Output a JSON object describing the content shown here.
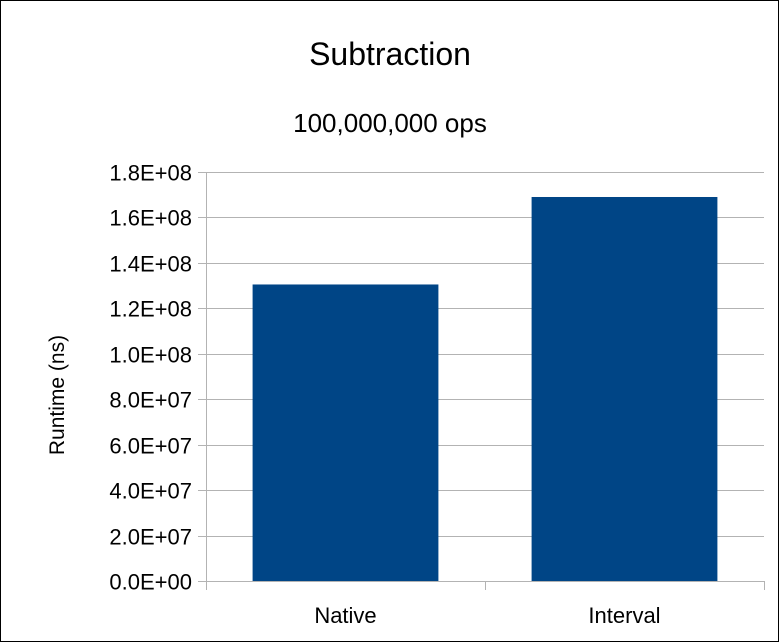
{
  "chart_data": {
    "type": "bar",
    "title": "Subtraction",
    "subtitle": "100,000,000 ops",
    "xlabel": "",
    "ylabel": "Runtime (ns)",
    "categories": [
      "Native",
      "Interval"
    ],
    "values": [
      130500000,
      169000000
    ],
    "ylim": [
      0,
      180000000
    ],
    "yticks": [
      0,
      20000000,
      40000000,
      60000000,
      80000000,
      100000000,
      120000000,
      140000000,
      160000000,
      180000000
    ],
    "ytick_labels": [
      "0.0E+00",
      "2.0E+07",
      "4.0E+07",
      "6.0E+07",
      "8.0E+07",
      "1.0E+08",
      "1.2E+08",
      "1.4E+08",
      "1.6E+08",
      "1.8E+08"
    ],
    "grid": true,
    "legend": "none",
    "bar_color": "#004586"
  }
}
